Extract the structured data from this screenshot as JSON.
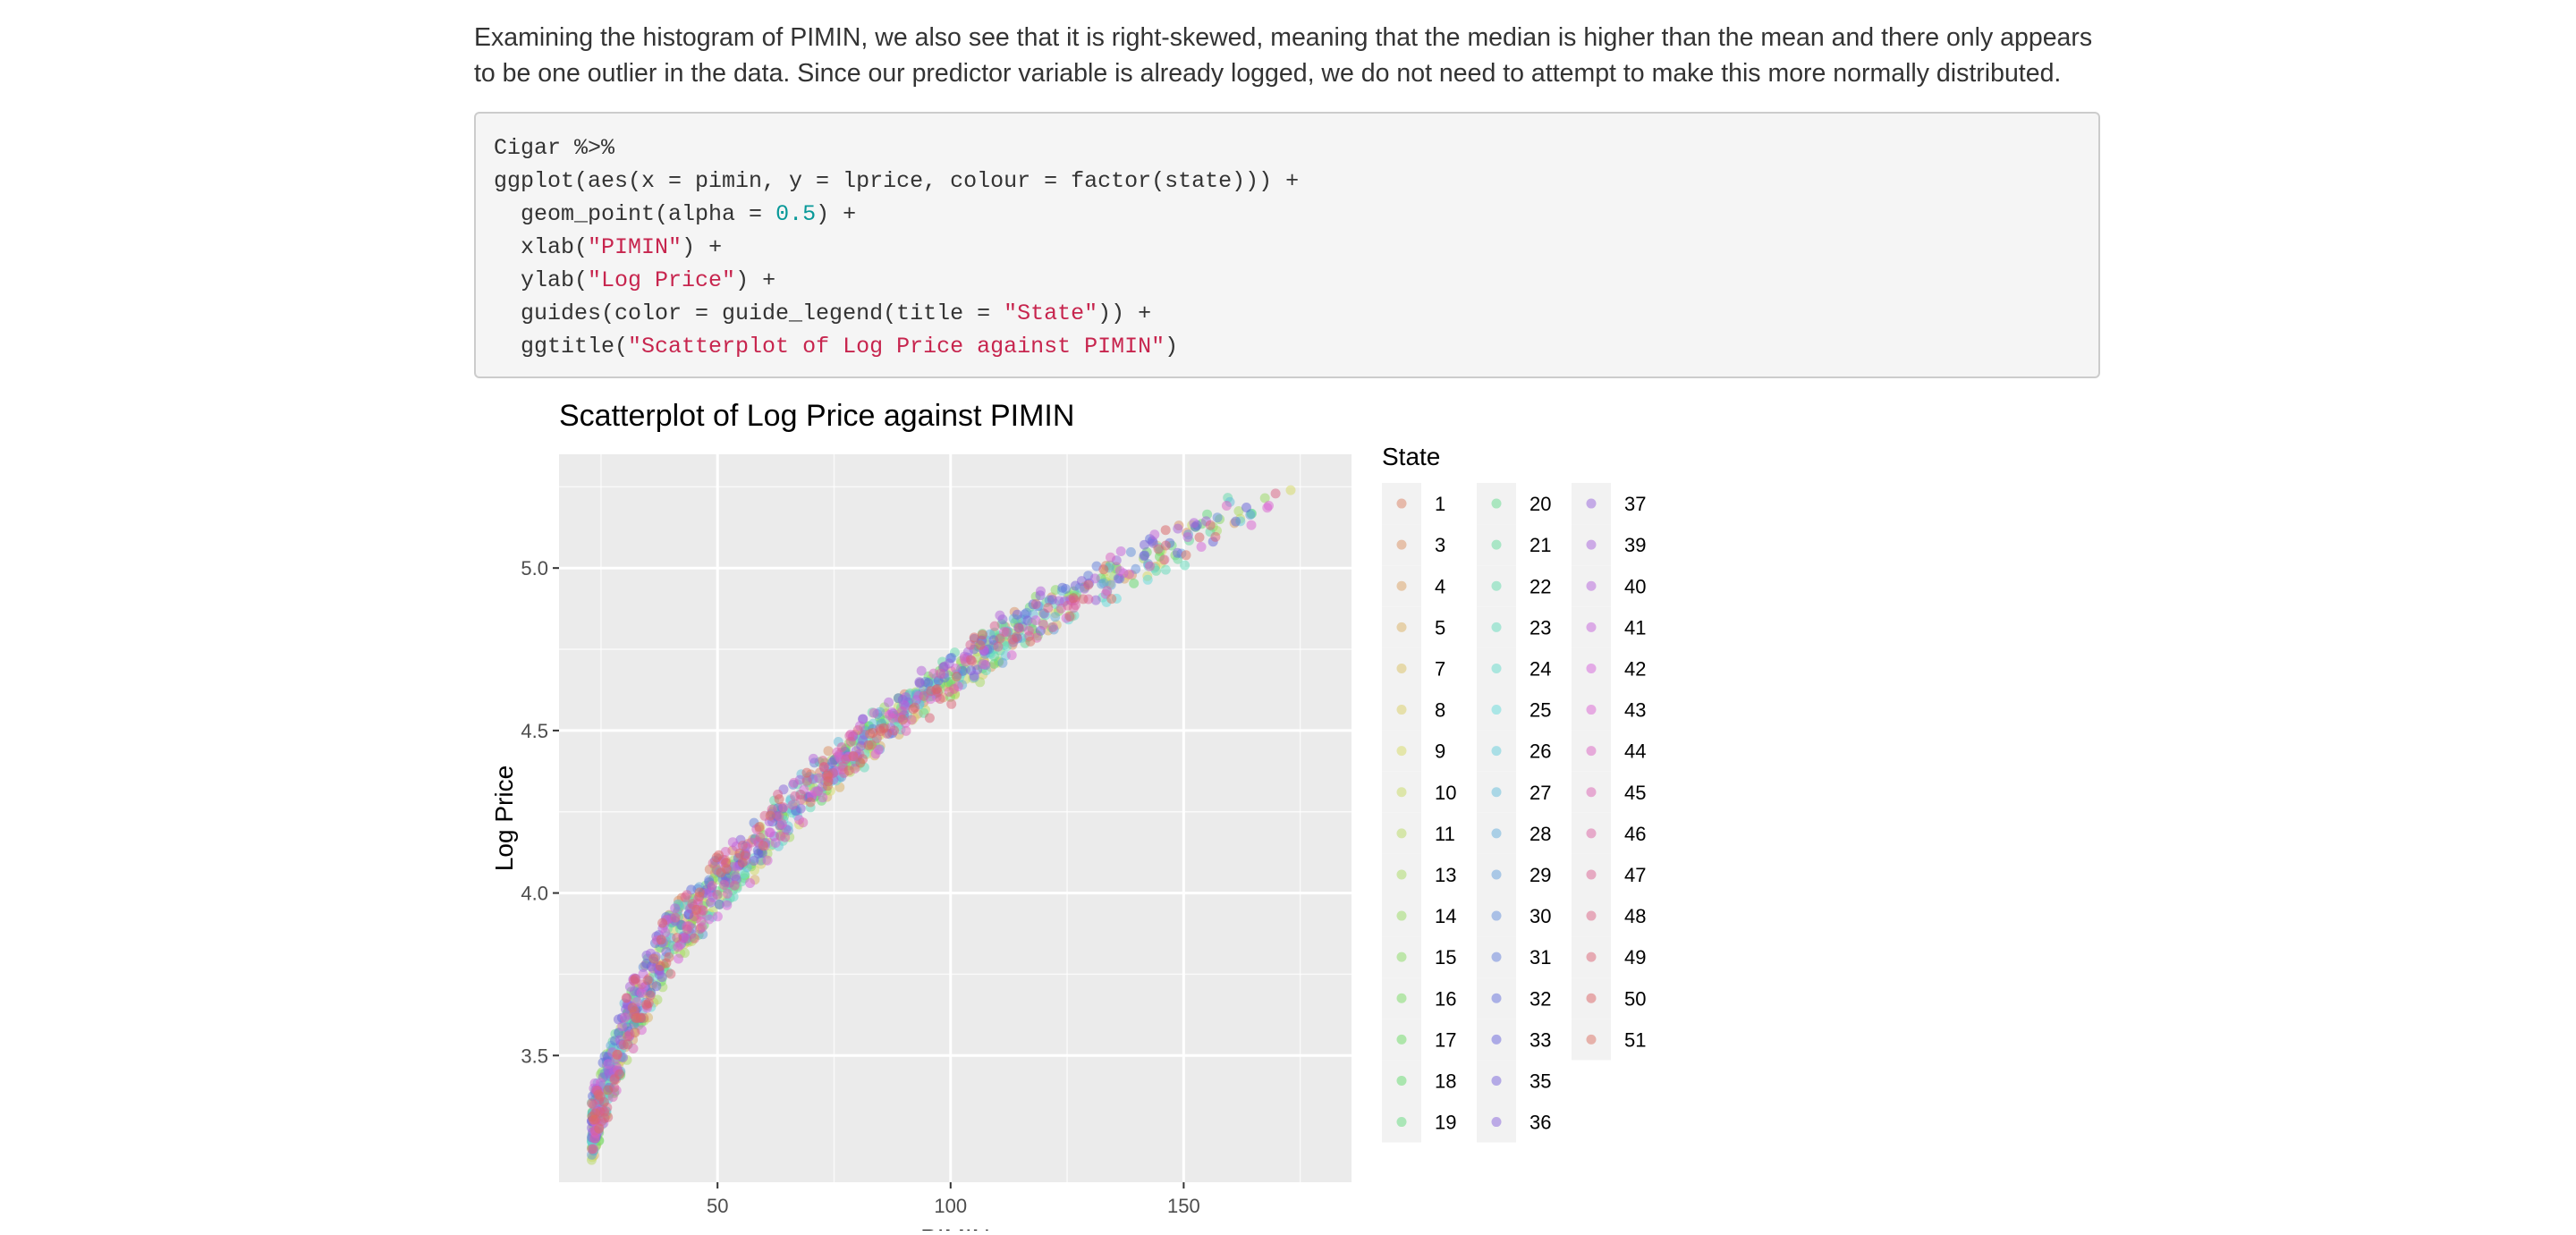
{
  "paragraph": {
    "text": "Examining the histogram of PIMIN, we also see that it is right-skewed, meaning that the median is higher than the mean and there only appears to be one outlier in the data. Since our predictor variable is already logged, we do not need to attempt to make this more normally distributed."
  },
  "code_block": {
    "lines": [
      [
        {
          "t": "plain",
          "s": "Cigar %>%"
        }
      ],
      [
        {
          "t": "plain",
          "s": "ggplot(aes(x = pimin, y = lprice, colour = factor(state))) +"
        }
      ],
      [
        {
          "t": "plain",
          "s": "  geom_point(alpha = "
        },
        {
          "t": "num",
          "s": "0.5"
        },
        {
          "t": "plain",
          "s": ") +"
        }
      ],
      [
        {
          "t": "plain",
          "s": "  xlab("
        },
        {
          "t": "str",
          "s": "\"PIMIN\""
        },
        {
          "t": "plain",
          "s": ") +"
        }
      ],
      [
        {
          "t": "plain",
          "s": "  ylab("
        },
        {
          "t": "str",
          "s": "\"Log Price\""
        },
        {
          "t": "plain",
          "s": ") +"
        }
      ],
      [
        {
          "t": "plain",
          "s": "  guides(color = guide_legend(title = "
        },
        {
          "t": "str",
          "s": "\"State\""
        },
        {
          "t": "plain",
          "s": ")) +"
        }
      ],
      [
        {
          "t": "plain",
          "s": "  ggtitle("
        },
        {
          "t": "str",
          "s": "\"Scatterplot of Log Price against PIMIN\""
        },
        {
          "t": "plain",
          "s": ")"
        }
      ]
    ]
  },
  "chart_data": {
    "type": "scatter",
    "title": "Scatterplot of Log Price against PIMIN",
    "xlabel": "PIMIN",
    "ylabel": "Log Price",
    "xlim": [
      16,
      186
    ],
    "ylim": [
      3.11,
      5.35
    ],
    "x_ticks": [
      50,
      100,
      150
    ],
    "y_ticks": [
      3.5,
      4.0,
      4.5,
      5.0
    ],
    "grid": true,
    "point_alpha": 0.5,
    "legend": {
      "title": "State",
      "placement": "right",
      "columns": 3,
      "entries": [
        "1",
        "3",
        "4",
        "5",
        "7",
        "8",
        "9",
        "10",
        "11",
        "13",
        "14",
        "15",
        "16",
        "17",
        "18",
        "19",
        "20",
        "21",
        "22",
        "23",
        "24",
        "25",
        "26",
        "27",
        "28",
        "29",
        "30",
        "31",
        "32",
        "33",
        "35",
        "36",
        "37",
        "39",
        "40",
        "41",
        "42",
        "43",
        "44",
        "45",
        "46",
        "47",
        "48",
        "49",
        "50",
        "51"
      ]
    },
    "trend_model": {
      "description": "approximate center of the point cloud per x value",
      "x": [
        23,
        30,
        40,
        50,
        60,
        70,
        80,
        90,
        100,
        110,
        120,
        130,
        140,
        150,
        160,
        170,
        178
      ],
      "y": [
        3.27,
        3.58,
        3.86,
        4.02,
        4.17,
        4.33,
        4.45,
        4.57,
        4.66,
        4.77,
        4.86,
        4.94,
        5.01,
        5.09,
        5.15,
        5.21,
        5.23
      ]
    },
    "points_per_state": 30,
    "x_range_of_points": [
      23,
      178
    ]
  },
  "colors": {
    "panel_bg": "#ebebeb",
    "grid_major": "#ffffff",
    "text": "#000000",
    "axis_text": "#4d4d4d",
    "legend_key_bg": "#f2f2f2"
  }
}
